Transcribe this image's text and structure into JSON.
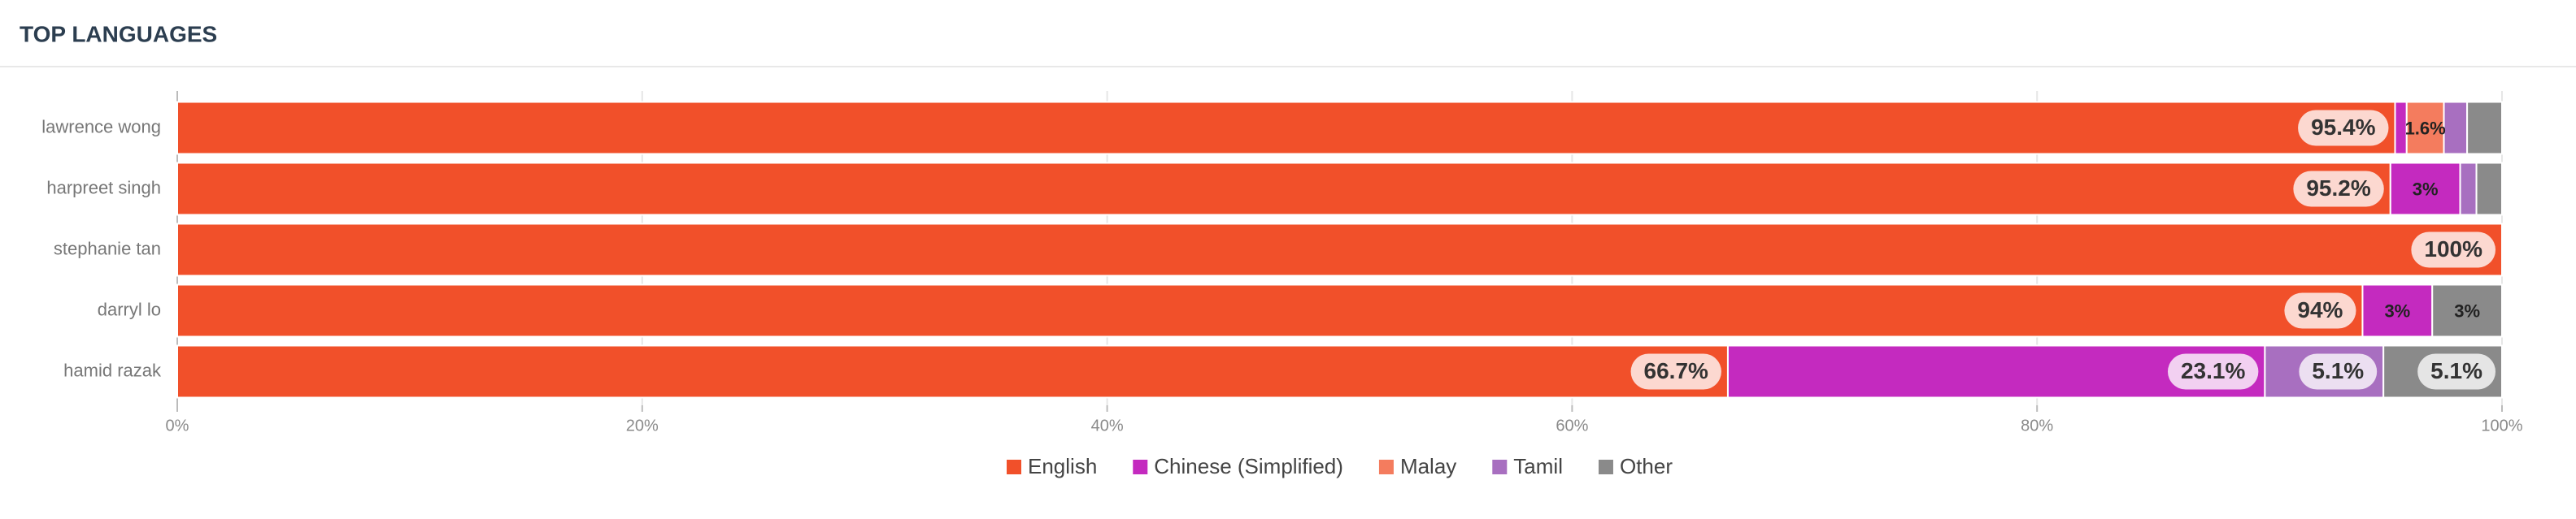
{
  "chart_data": {
    "type": "stacked-bar-horizontal",
    "title": "TOP LANGUAGES",
    "categories": [
      "lawrence wong",
      "harpreet singh",
      "stephanie tan",
      "darryl lo",
      "hamid razak"
    ],
    "series": [
      {
        "name": "English",
        "color": "#f1502a",
        "values": [
          95.4,
          95.2,
          100,
          94,
          66.7
        ],
        "value_labels": [
          "95.4%",
          "95.2%",
          "100%",
          "94%",
          "66.7%"
        ]
      },
      {
        "name": "Chinese (Simplified)",
        "color": "#c42abf",
        "values": [
          0.5,
          3,
          null,
          3,
          23.1
        ],
        "value_labels": [
          null,
          "3%",
          null,
          "3%",
          "23.1%"
        ]
      },
      {
        "name": "Malay",
        "color": "#f47c5e",
        "values": [
          1.6,
          null,
          null,
          null,
          null
        ],
        "value_labels": [
          "1.6%",
          null,
          null,
          null,
          null
        ]
      },
      {
        "name": "Tamil",
        "color": "#a86fc0",
        "values": [
          1.0,
          0.7,
          null,
          null,
          5.1
        ],
        "value_labels": [
          null,
          null,
          null,
          null,
          "5.1%"
        ]
      },
      {
        "name": "Other",
        "color": "#8a8a8a",
        "values": [
          1.5,
          1.1,
          null,
          3,
          5.1
        ],
        "value_labels": [
          null,
          null,
          null,
          "3%",
          "5.1%"
        ]
      }
    ],
    "xlim": [
      0,
      100
    ],
    "xticks": [
      {
        "value": 0,
        "label": "0%"
      },
      {
        "value": 20,
        "label": "20%"
      },
      {
        "value": 40,
        "label": "40%"
      },
      {
        "value": 60,
        "label": "60%"
      },
      {
        "value": 80,
        "label": "80%"
      },
      {
        "value": 100,
        "label": "100%"
      }
    ],
    "grid": true,
    "legend": "bottom"
  }
}
